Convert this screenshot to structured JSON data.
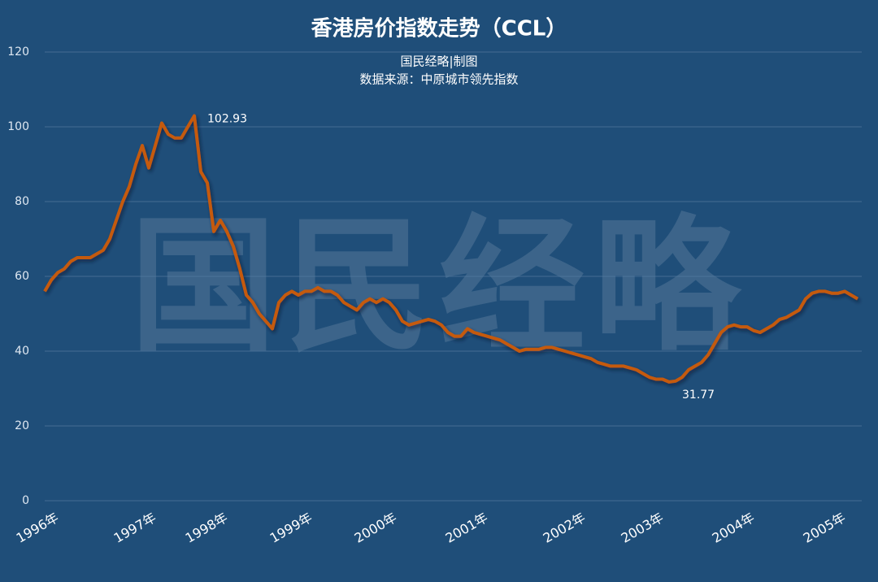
{
  "chart_data": {
    "type": "line",
    "title": "香港房价指数走势（CCL）",
    "subtitle": [
      "国民经略|制图",
      "数据来源：中原城市领先指数"
    ],
    "watermark": "国民经略",
    "categories": [
      "1996年",
      null,
      null,
      null,
      null,
      null,
      null,
      null,
      null,
      null,
      null,
      null,
      null,
      null,
      null,
      "1997年",
      null,
      null,
      null,
      null,
      null,
      null,
      null,
      null,
      null,
      null,
      "1998年",
      null,
      null,
      null,
      null,
      null,
      null,
      null,
      null,
      null,
      null,
      null,
      null,
      "1999年",
      null,
      null,
      null,
      null,
      null,
      null,
      null,
      null,
      null,
      null,
      null,
      null,
      "2000年",
      null,
      null,
      null,
      null,
      null,
      null,
      null,
      null,
      null,
      null,
      null,
      null,
      null,
      "2001年",
      null,
      null,
      null,
      null,
      null,
      null,
      null,
      null,
      null,
      null,
      null,
      null,
      null,
      null,
      "2002年",
      null,
      null,
      null,
      null,
      null,
      null,
      null,
      null,
      null,
      null,
      null,
      "2003年",
      null,
      null,
      null,
      null,
      null,
      null,
      null,
      null,
      null,
      null,
      null,
      null,
      null,
      "2004年",
      null,
      null,
      null,
      null,
      null,
      null,
      null,
      null,
      null,
      null,
      null,
      null,
      null,
      "2005年",
      null,
      null,
      null,
      null
    ],
    "series": [
      {
        "name": "CCL",
        "color": "#c55a11",
        "values": [
          56,
          59,
          61,
          62,
          64,
          65,
          65,
          65,
          66,
          67,
          70,
          75,
          80,
          84,
          90,
          95,
          89,
          95,
          101,
          98,
          97,
          97,
          100,
          102.93,
          88,
          85,
          72,
          75,
          72,
          68,
          62,
          55,
          53,
          50,
          48,
          46,
          53,
          55,
          56,
          55,
          56,
          56,
          57,
          56,
          56,
          55,
          53,
          52,
          51,
          53,
          54,
          53,
          54,
          53,
          51,
          48,
          47,
          47.5,
          48,
          48.5,
          48,
          47,
          45,
          44,
          44,
          46,
          45,
          44.5,
          44,
          43.5,
          43,
          42,
          41,
          40,
          40.5,
          40.5,
          40.5,
          41,
          41,
          40.5,
          40,
          39.5,
          39,
          38.5,
          38,
          37,
          36.5,
          36,
          36,
          36,
          35.5,
          35,
          34,
          33,
          32.5,
          32.5,
          31.77,
          32,
          33,
          35,
          36,
          37,
          39,
          42,
          45,
          46.5,
          47,
          46.5,
          46.5,
          45.5,
          45,
          46,
          47,
          48.5,
          49,
          50,
          51,
          54,
          55.5,
          56,
          56,
          55.5,
          55.5,
          56,
          55,
          54
        ],
        "value_labels": [
          null,
          null,
          null,
          null,
          null,
          null,
          null,
          null,
          null,
          null,
          null,
          null,
          null,
          null,
          null,
          null,
          null,
          null,
          null,
          null,
          null,
          null,
          null,
          "102.93",
          null,
          null,
          null,
          null,
          null,
          null,
          null,
          null,
          null,
          null,
          null,
          null,
          null,
          null,
          null,
          null,
          null,
          null,
          null,
          null,
          null,
          null,
          null,
          null,
          null,
          null,
          null,
          null,
          null,
          null,
          null,
          null,
          null,
          null,
          null,
          null,
          null,
          null,
          null,
          null,
          null,
          null,
          null,
          null,
          null,
          null,
          null,
          null,
          null,
          null,
          null,
          null,
          null,
          null,
          null,
          null,
          null,
          null,
          null,
          null,
          null,
          null,
          null,
          null,
          null,
          null,
          null,
          null,
          null,
          null,
          null,
          null,
          "31.77",
          null,
          null,
          null,
          null,
          null,
          null,
          null,
          null,
          null,
          null,
          null,
          null,
          null,
          null,
          null,
          null,
          null,
          null,
          null,
          null,
          null,
          null,
          null,
          null,
          null,
          null,
          null,
          null,
          null
        ]
      }
    ],
    "ylim": [
      0,
      120
    ],
    "yticks": [
      0,
      20,
      40,
      60,
      80,
      100,
      120
    ],
    "grid": true
  }
}
